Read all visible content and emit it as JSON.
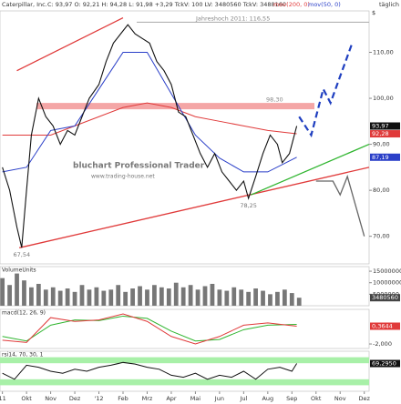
{
  "header": {
    "title": "Caterpillar, Inc.",
    "quote": "C: 93,97 O: 92,21 H: 94,28 L: 91,98 +3,29 TckV: 100 LV: 3480560 TckV: 3488160",
    "ma200": "mov(200, 0)",
    "ma50": "mov(50, 0)",
    "period": "täglich",
    "currency": "$",
    "watermark": [
      "bluchart Professional Trader",
      "www.trading-house.net"
    ]
  },
  "time_axis": {
    "xlim": [
      -0.1,
      15.2
    ],
    "xticks": [
      {
        "value": 0,
        "label": "11"
      },
      {
        "value": 1,
        "label": "Okt"
      },
      {
        "value": 2,
        "label": "Nov"
      },
      {
        "value": 3,
        "label": "Dez"
      },
      {
        "value": 4,
        "label": "'12"
      },
      {
        "value": 5,
        "label": "Feb"
      },
      {
        "value": 6,
        "label": "Mrz"
      },
      {
        "value": 7,
        "label": "Apr"
      },
      {
        "value": 8,
        "label": "Mai"
      },
      {
        "value": 9,
        "label": "Jun"
      },
      {
        "value": 10,
        "label": "Jul"
      },
      {
        "value": 11,
        "label": "Aug"
      },
      {
        "value": 12,
        "label": "Sep"
      },
      {
        "value": 13,
        "label": "Okt"
      },
      {
        "value": 14,
        "label": "Nov"
      },
      {
        "value": 15,
        "label": "Dez"
      }
    ]
  },
  "chart_data": [
    {
      "type": "line",
      "ylim": [
        64,
        119
      ],
      "yticks": [
        {
          "value": 70,
          "label": "70,00"
        },
        {
          "value": 80,
          "label": "80,00"
        },
        {
          "value": 90,
          "label": "90,00"
        },
        {
          "value": 100,
          "label": "100,00"
        },
        {
          "value": 110,
          "label": "110,00"
        }
      ],
      "series": [
        {
          "color": "#e03a3a",
          "x": [
            0,
            2,
            4,
            5,
            6,
            7,
            8,
            9,
            10,
            11,
            12.2
          ],
          "values": [
            92,
            92,
            96,
            98,
            99,
            98,
            96,
            95,
            94,
            93,
            92.28
          ],
          "last_label": "92,28"
        },
        {
          "color": "#2a3fc8",
          "x": [
            0,
            1,
            2,
            3,
            4,
            5,
            6,
            7,
            8,
            9,
            10,
            11,
            12.2
          ],
          "values": [
            84,
            85,
            93,
            94,
            102,
            110,
            110,
            101,
            92,
            87,
            84,
            84,
            87.19
          ],
          "last_label": "87,19"
        },
        {
          "color": "#111111",
          "x": [
            0,
            0.3,
            0.6,
            0.8,
            1.0,
            1.2,
            1.5,
            1.8,
            2.1,
            2.4,
            2.7,
            3.0,
            3.3,
            3.6,
            4.0,
            4.3,
            4.6,
            4.9,
            5.2,
            5.5,
            5.8,
            6.1,
            6.4,
            6.7,
            7.0,
            7.3,
            7.6,
            7.9,
            8.2,
            8.5,
            8.8,
            9.1,
            9.4,
            9.7,
            10.0,
            10.2,
            10.5,
            10.8,
            11.1,
            11.4,
            11.6,
            11.9,
            12.2
          ],
          "values": [
            85,
            80,
            72,
            67.54,
            80,
            92,
            100,
            96,
            94,
            90,
            93,
            92,
            96,
            100,
            103,
            108,
            112,
            114,
            116,
            114,
            113,
            112,
            108,
            106,
            103,
            97,
            96,
            92,
            88,
            85,
            88,
            84,
            82,
            80,
            82,
            78.25,
            83,
            88,
            92,
            90,
            86,
            88,
            93.97
          ],
          "last_label": "93,97"
        }
      ],
      "levels": [
        {
          "value": 116.55,
          "label": "Jahreshoch 2011: 116,55",
          "color": "#aaaaaa",
          "width": 1
        },
        {
          "value": 98.3,
          "label": "98,30",
          "color": "#f4a6a6",
          "width": 7
        }
      ],
      "point_labels": [
        {
          "x": 10.2,
          "value": 78.25,
          "label": "78,25"
        },
        {
          "x": 0.8,
          "value": 67.54,
          "label": "67,54"
        }
      ],
      "trendlines": [
        {
          "color": "#e03a3a",
          "dash": false,
          "points": [
            [
              0.6,
              106
            ],
            [
              5.0,
              117.5
            ]
          ]
        },
        {
          "color": "#e03a3a",
          "dash": false,
          "points": [
            [
              0.7,
              67.5
            ],
            [
              15.2,
              85
            ]
          ]
        },
        {
          "color": "#2fb52f",
          "dash": false,
          "points": [
            [
              10.3,
              79
            ],
            [
              15.2,
              90
            ]
          ]
        },
        {
          "color": "#1f3fc0",
          "dash": true,
          "points": [
            [
              12.3,
              96
            ],
            [
              12.8,
              92
            ],
            [
              13.3,
              102
            ],
            [
              13.6,
              99
            ],
            [
              14.5,
              112
            ]
          ]
        },
        {
          "color": "#666666",
          "dash": false,
          "points": [
            [
              13.0,
              82
            ],
            [
              13.7,
              82
            ],
            [
              14.0,
              79
            ],
            [
              14.3,
              83
            ],
            [
              15.0,
              70
            ]
          ]
        }
      ]
    },
    {
      "type": "bar",
      "title": "VolumeUnits",
      "color": "#777777",
      "ylim": [
        0,
        17000000
      ],
      "yticks": [
        5000000,
        10000000,
        15000000
      ],
      "x": [
        0,
        0.3,
        0.6,
        0.9,
        1.2,
        1.5,
        1.8,
        2.1,
        2.4,
        2.7,
        3,
        3.3,
        3.6,
        3.9,
        4.2,
        4.5,
        4.8,
        5.1,
        5.4,
        5.7,
        6,
        6.3,
        6.6,
        6.9,
        7.2,
        7.5,
        7.8,
        8.1,
        8.4,
        8.7,
        9,
        9.3,
        9.6,
        9.9,
        10.2,
        10.5,
        10.8,
        11.1,
        11.4,
        11.7,
        12,
        12.3
      ],
      "values": [
        12000000,
        9000000,
        14000000,
        11000000,
        8000000,
        9500000,
        7000000,
        8000000,
        6500000,
        7500000,
        6000000,
        9000000,
        7000000,
        8000000,
        6500000,
        7000000,
        9000000,
        6000000,
        7500000,
        8500000,
        7000000,
        9000000,
        8000000,
        7500000,
        10000000,
        8000000,
        9000000,
        7000000,
        8500000,
        9500000,
        7000000,
        6500000,
        8000000,
        7000000,
        6000000,
        7500000,
        6500000,
        5000000,
        6000000,
        7000000,
        5500000,
        3480560
      ]
    },
    {
      "type": "line",
      "title": "macd(12, 26, 9)",
      "ylim": [
        -2.6,
        2.6
      ],
      "yticks": [
        {
          "value": -2,
          "label": "-2,000"
        }
      ],
      "series": [
        {
          "color": "#2fb52f",
          "x": [
            0,
            1,
            2,
            3,
            4,
            5,
            6,
            7,
            8,
            9,
            10,
            11,
            12.2
          ],
          "values": [
            -1,
            -1.6,
            0.5,
            1.2,
            1.1,
            1.7,
            1.4,
            -0.3,
            -1.6,
            -1.4,
            -0.1,
            0.5,
            0.6
          ]
        },
        {
          "color": "#e03a3a",
          "x": [
            0,
            1,
            2,
            3,
            4,
            5,
            6,
            7,
            8,
            9,
            10,
            11,
            12.2
          ],
          "values": [
            -1.5,
            -1.8,
            1.5,
            1.0,
            1.2,
            2.0,
            1.0,
            -1.0,
            -2.0,
            -1.0,
            0.5,
            0.8,
            0.3644
          ],
          "last_label": "0,3644"
        }
      ]
    },
    {
      "type": "line",
      "title": "rsi14, 70, 30, 1",
      "ylim": [
        0,
        100
      ],
      "yticks": [],
      "bands": [
        [
          70,
          85
        ],
        [
          15,
          30
        ]
      ],
      "band_color": "#a8f0a8",
      "series": [
        {
          "color": "#111111",
          "x": [
            0,
            0.5,
            1,
            1.5,
            2,
            2.5,
            3,
            3.5,
            4,
            4.5,
            5,
            5.5,
            6,
            6.5,
            7,
            7.5,
            8,
            8.5,
            9,
            9.5,
            10,
            10.5,
            11,
            11.5,
            12,
            12.2
          ],
          "values": [
            45,
            30,
            65,
            60,
            50,
            45,
            55,
            50,
            60,
            65,
            72,
            68,
            60,
            55,
            40,
            35,
            45,
            30,
            40,
            35,
            50,
            30,
            55,
            60,
            50,
            69.295
          ],
          "last_label": "69,2950"
        }
      ]
    }
  ]
}
